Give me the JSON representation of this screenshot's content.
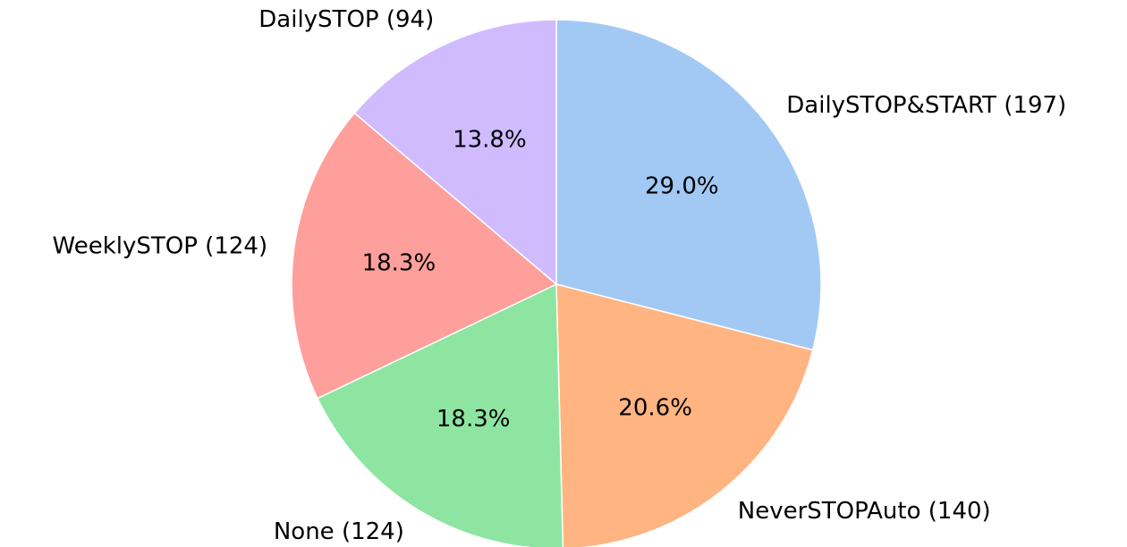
{
  "chart_data": {
    "type": "pie",
    "categories": [
      "DailySTOP&START (197)",
      "NeverSTOPAuto (140)",
      "None (124)",
      "WeeklySTOP (124)",
      "DailySTOP (94)"
    ],
    "values": [
      29.0,
      20.6,
      18.3,
      18.3,
      13.8
    ],
    "value_labels": [
      "29.0%",
      "20.6%",
      "18.3%",
      "18.3%",
      "13.8%"
    ],
    "colors": [
      "#a1c9f4",
      "#ffb482",
      "#8de5a1",
      "#ff9f9b",
      "#d0bbff"
    ],
    "direction": "clockwise"
  }
}
